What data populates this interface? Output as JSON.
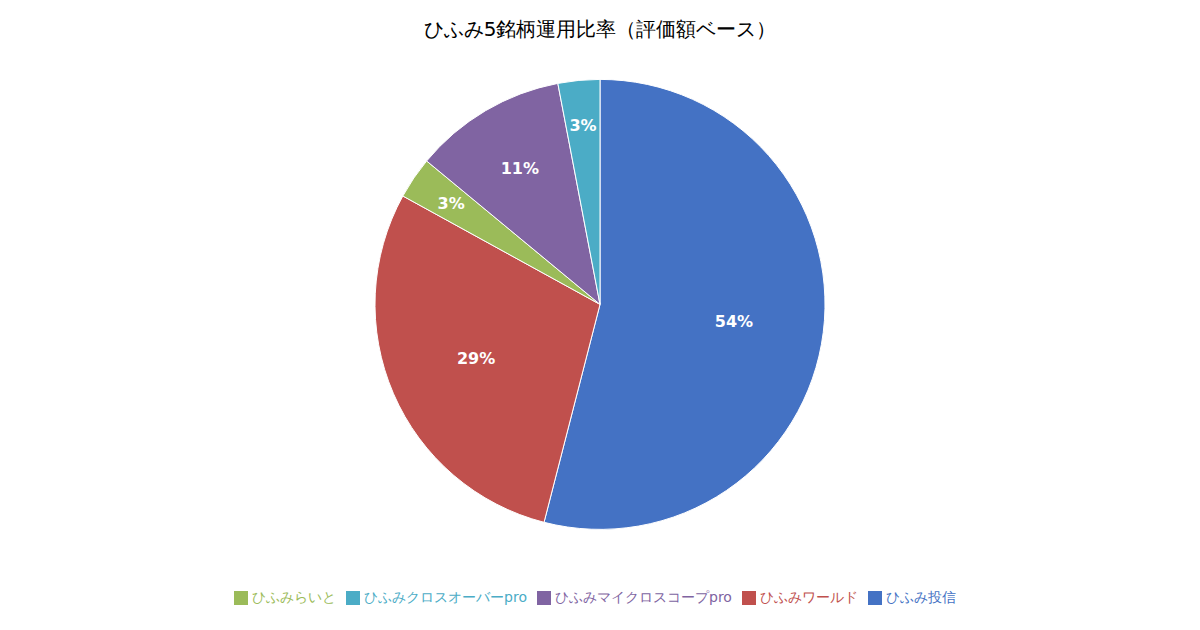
{
  "chart_data": {
    "type": "pie",
    "title": "ひふみ5銘柄運用比率（評価額ベース）",
    "categories": [
      "ひふみ投信",
      "ひふみワールド",
      "ひふみらいと",
      "ひふみマイクロスコープpro",
      "ひふみクロスオーバーpro"
    ],
    "values": [
      54,
      29,
      3,
      11,
      3
    ],
    "value_labels": [
      "54%",
      "29%",
      "3%",
      "11%",
      "3%"
    ],
    "colors": [
      "#4472C4",
      "#C0504D",
      "#9BBB59",
      "#8064A2",
      "#4BACC6"
    ],
    "legend": "bottom",
    "data_labels": true
  }
}
